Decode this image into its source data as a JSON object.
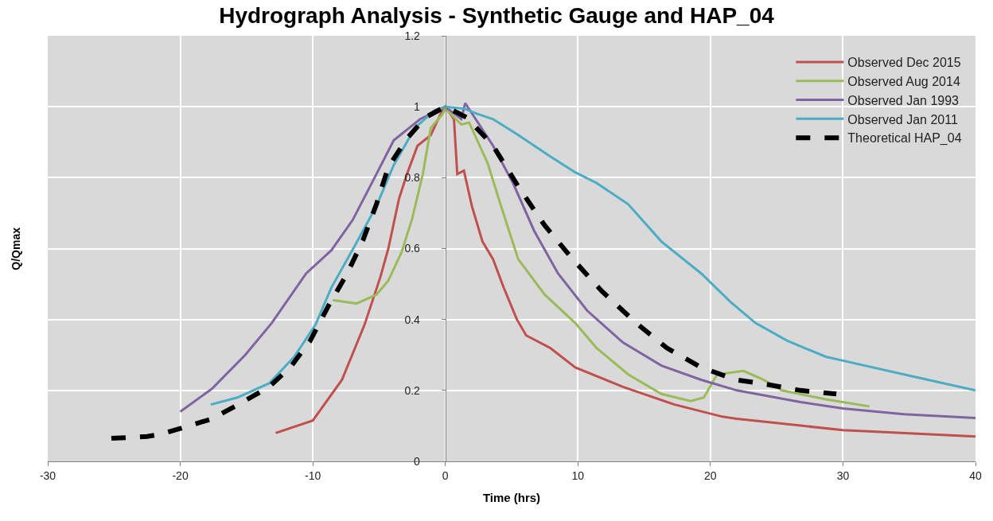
{
  "chart_data": {
    "type": "line",
    "title": "Hydrograph Analysis - Synthetic Gauge and HAP_04",
    "xlabel": "Time (hrs)",
    "ylabel": "Q/Qmax",
    "xlim": [
      -30,
      40
    ],
    "xticks": [
      -30,
      -20,
      -10,
      0,
      10,
      20,
      30,
      40
    ],
    "ylim": [
      0,
      1.2
    ],
    "yticks": [
      0,
      0.2,
      0.4,
      0.6,
      0.8,
      1,
      1.2
    ],
    "grid": true,
    "legend": "top right",
    "marker": "none",
    "series": [
      {
        "name": "Observed Dec 2015",
        "color": "#c0504d",
        "line_style": "solid",
        "x": [
          -12.8,
          -10,
          -7.8,
          -6.1,
          -4.9,
          -4.3,
          -3.5,
          -2.9,
          -2.1,
          -1.1,
          -0.35,
          0,
          0.65,
          0.9,
          1.4,
          2.0,
          2.8,
          3.6,
          4.4,
          5.4,
          6.1,
          7.9,
          9.8,
          13.4,
          17.3,
          20.9,
          22,
          30,
          40
        ],
        "values": [
          0.08,
          0.115,
          0.23,
          0.385,
          0.52,
          0.6,
          0.74,
          0.81,
          0.89,
          0.92,
          0.98,
          1.0,
          0.965,
          0.81,
          0.82,
          0.72,
          0.62,
          0.57,
          0.49,
          0.4,
          0.355,
          0.32,
          0.265,
          0.21,
          0.16,
          0.126,
          0.12,
          0.088,
          0.07
        ]
      },
      {
        "name": "Observed Aug 2014",
        "color": "#9bbb59",
        "line_style": "solid",
        "x": [
          -8.5,
          -6.7,
          -5.2,
          -4.3,
          -3.3,
          -2.5,
          -1.7,
          -1.1,
          -0.2,
          0,
          1.2,
          1.8,
          3.2,
          4.2,
          5.5,
          7.5,
          9.8,
          11.4,
          13.8,
          16.3,
          18.5,
          19.5,
          20.5,
          22.5,
          24,
          25.4,
          28.7,
          32
        ],
        "values": [
          0.455,
          0.445,
          0.47,
          0.51,
          0.59,
          0.685,
          0.81,
          0.94,
          0.98,
          0.995,
          0.95,
          0.955,
          0.84,
          0.72,
          0.57,
          0.47,
          0.39,
          0.32,
          0.245,
          0.19,
          0.17,
          0.18,
          0.245,
          0.255,
          0.23,
          0.2,
          0.175,
          0.155
        ]
      },
      {
        "name": "Observed Jan 1993",
        "color": "#8064a2",
        "line_style": "solid",
        "x": [
          -20,
          -17.6,
          -15.1,
          -13.1,
          -10.5,
          -8.6,
          -7,
          -5.2,
          -3.9,
          -1.9,
          -0.5,
          0,
          1.2,
          1.5,
          2.2,
          3.6,
          5.1,
          6.7,
          8.5,
          10.7,
          13.4,
          16.3,
          19.3,
          22,
          26.8,
          30,
          34.6,
          40
        ],
        "values": [
          0.14,
          0.205,
          0.3,
          0.39,
          0.53,
          0.595,
          0.68,
          0.81,
          0.905,
          0.965,
          0.99,
          1.0,
          0.965,
          1.01,
          0.97,
          0.89,
          0.785,
          0.65,
          0.53,
          0.425,
          0.335,
          0.27,
          0.23,
          0.2,
          0.167,
          0.149,
          0.133,
          0.122
        ]
      },
      {
        "name": "Observed Jan 2011",
        "color": "#4bacc6",
        "line_style": "solid",
        "x": [
          -17.7,
          -15.7,
          -13.3,
          -11.4,
          -9.8,
          -8.6,
          -6.8,
          -5.2,
          -3.9,
          -2.3,
          -0.8,
          0,
          1.4,
          2.4,
          3.6,
          5.5,
          7.9,
          9.8,
          11.4,
          13.8,
          16.3,
          19.3,
          21.5,
          23.4,
          25.8,
          28.7,
          30,
          34.6,
          40
        ],
        "values": [
          0.16,
          0.18,
          0.22,
          0.295,
          0.385,
          0.49,
          0.61,
          0.72,
          0.835,
          0.94,
          0.99,
          1.0,
          0.995,
          0.98,
          0.965,
          0.92,
          0.86,
          0.815,
          0.785,
          0.725,
          0.62,
          0.53,
          0.45,
          0.39,
          0.34,
          0.295,
          0.284,
          0.245,
          0.2
        ]
      },
      {
        "name": "Theoretical HAP_04",
        "color": "#000000",
        "line_style": "dashed",
        "x": [
          -25.2,
          -22.5,
          -21.4,
          -17.6,
          -15.3,
          -13.3,
          -11.7,
          -10.2,
          -8.8,
          -7.4,
          -6.2,
          -5.2,
          -4.3,
          -2.9,
          -1.5,
          0,
          1.6,
          3.6,
          5.5,
          7.5,
          9.5,
          11.8,
          14.4,
          16.7,
          19.3,
          21.9,
          23.8,
          26.8,
          29.5
        ],
        "values": [
          0.065,
          0.07,
          0.077,
          0.12,
          0.167,
          0.21,
          0.265,
          0.34,
          0.44,
          0.53,
          0.625,
          0.725,
          0.83,
          0.91,
          0.97,
          1.0,
          0.97,
          0.89,
          0.775,
          0.665,
          0.575,
          0.48,
          0.39,
          0.32,
          0.265,
          0.23,
          0.22,
          0.2,
          0.19
        ]
      }
    ]
  }
}
